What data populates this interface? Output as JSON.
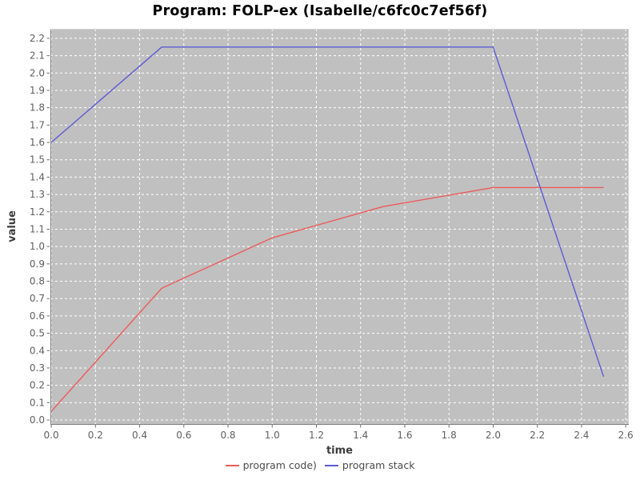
{
  "title": "Program: FOLP-ex (Isabelle/c6fc0c7ef56f)",
  "chart_data": {
    "type": "line",
    "title": "Program: FOLP-ex (Isabelle/c6fc0c7ef56f)",
    "xlabel": "time",
    "ylabel": "value",
    "xlim": [
      0.0,
      2.6
    ],
    "ylim": [
      0.0,
      2.2
    ],
    "x_ticks": [
      "0.0",
      "0.2",
      "0.4",
      "0.6",
      "0.8",
      "1.0",
      "1.2",
      "1.4",
      "1.6",
      "1.8",
      "2.0",
      "2.2",
      "2.4",
      "2.6"
    ],
    "y_ticks": [
      "0.0",
      "0.1",
      "0.2",
      "0.3",
      "0.4",
      "0.5",
      "0.6",
      "0.7",
      "0.8",
      "0.9",
      "1.0",
      "1.1",
      "1.2",
      "1.3",
      "1.4",
      "1.5",
      "1.6",
      "1.7",
      "1.8",
      "1.9",
      "2.0",
      "2.1",
      "2.2"
    ],
    "grid": true,
    "legend_position": "bottom",
    "series": [
      {
        "name": "program code)",
        "color": "#ee5a5a",
        "x": [
          0.0,
          0.5,
          1.0,
          1.5,
          2.0,
          2.5
        ],
        "y": [
          0.05,
          0.76,
          1.05,
          1.23,
          1.34,
          1.34
        ]
      },
      {
        "name": "program stack",
        "color": "#5b5bd6",
        "x": [
          0.0,
          0.5,
          1.0,
          1.5,
          2.0,
          2.5
        ],
        "y": [
          1.6,
          2.15,
          2.15,
          2.15,
          2.15,
          0.25
        ]
      }
    ],
    "colors": {
      "plot_background": "#c0c0c0",
      "gridline": "#ffffff",
      "border_dark": "#7c7c7c",
      "border_light": "#d2d2d2",
      "tick_mark": "#6e6e6e",
      "tick_label": "#5f5f5f",
      "axis_label": "#3c3c3c",
      "legend_text": "#4a4a4a",
      "title_text": "#000000"
    }
  }
}
